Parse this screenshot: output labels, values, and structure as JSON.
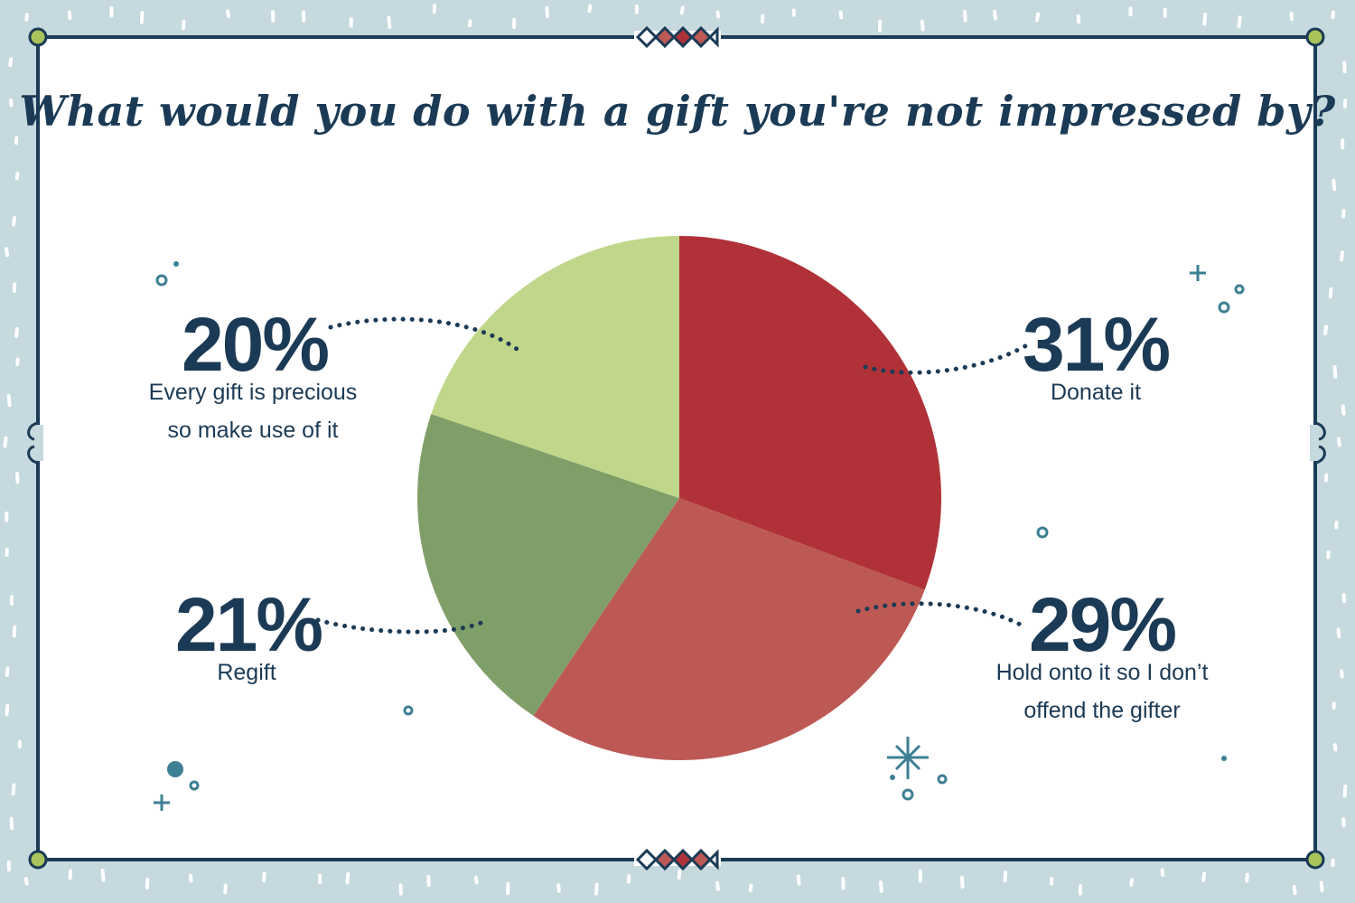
{
  "colors": {
    "background": "#c5d9de",
    "panel": "#ffffff",
    "frame": "#1b3a55",
    "corner_dot": "#a9c45a",
    "text": "#1b3a55",
    "decor": "#3d7f94"
  },
  "chart_data": {
    "type": "pie",
    "title": "What would you do with a gift you're not impressed by?",
    "slices": [
      {
        "value": 31,
        "label_pct": "31%",
        "label_lines": [
          "Donate it"
        ],
        "color": "#b03238"
      },
      {
        "value": 29,
        "label_pct": "29%",
        "label_lines": [
          "Hold onto it so I don’t",
          "offend the gifter"
        ],
        "color": "#bd5955"
      },
      {
        "value": 21,
        "label_pct": "21%",
        "label_lines": [
          "Regift"
        ],
        "color": "#809f68"
      },
      {
        "value": 20,
        "label_pct": "20%",
        "label_lines": [
          "Every gift is precious",
          "so make use of it"
        ],
        "color": "#c0d78b"
      }
    ],
    "start_angle_deg": 0,
    "direction": "clockwise",
    "legend": "none"
  }
}
